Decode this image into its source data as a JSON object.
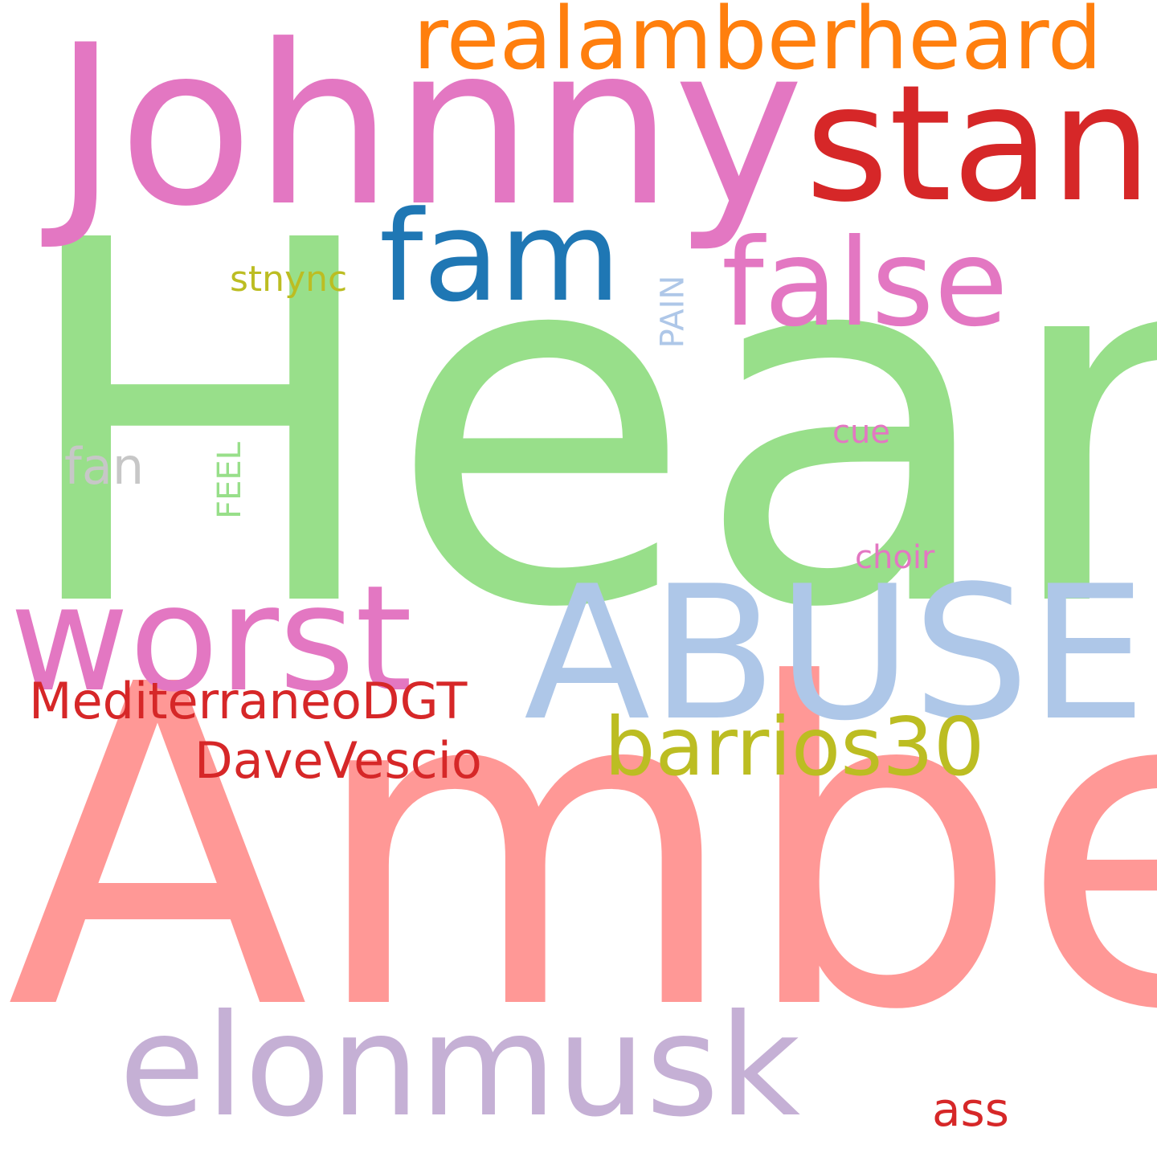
{
  "cloud": {
    "words": [
      {
        "text": "Heard",
        "color": "#98df8a"
      },
      {
        "text": "Amber",
        "color": "#ff9896"
      },
      {
        "text": "Johnny",
        "color": "#e377c2"
      },
      {
        "text": "ABUSER",
        "color": "#aec7e8"
      },
      {
        "text": "stan",
        "color": "#d62728"
      },
      {
        "text": "worst",
        "color": "#e377c2"
      },
      {
        "text": "elonmusk",
        "color": "#c5b0d5"
      },
      {
        "text": "realamberheard",
        "color": "#ff7f0e"
      },
      {
        "text": "fam",
        "color": "#1f77b4"
      },
      {
        "text": "false",
        "color": "#e377c2"
      },
      {
        "text": "barrios30",
        "color": "#bcbd22"
      },
      {
        "text": "MediterraneoDGT",
        "color": "#d62728"
      },
      {
        "text": "DaveVescio",
        "color": "#d62728"
      },
      {
        "text": "fan",
        "color": "#c7c7c7"
      },
      {
        "text": "ass",
        "color": "#d62728"
      },
      {
        "text": "stnync",
        "color": "#bcbd22"
      },
      {
        "text": "PAIN",
        "color": "#aec7e8"
      },
      {
        "text": "FEEL",
        "color": "#98df8a"
      },
      {
        "text": "cue",
        "color": "#e377c2"
      },
      {
        "text": "choir",
        "color": "#e377c2"
      }
    ]
  }
}
